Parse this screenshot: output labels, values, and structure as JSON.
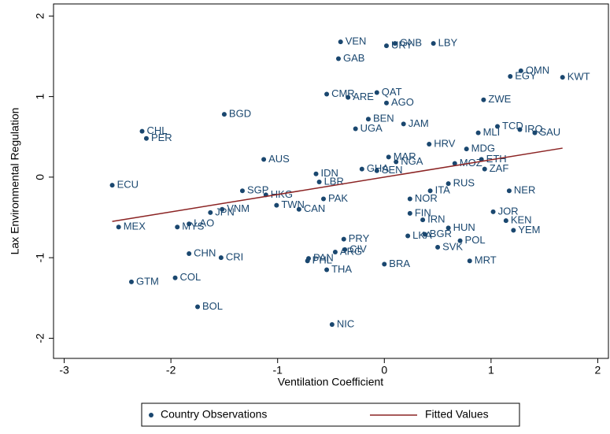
{
  "chart_data": {
    "type": "scatter",
    "x_label": "Ventilation Coefficient",
    "y_label": "Lax Environmental Regulation",
    "xlim": [
      -3.1,
      2.1
    ],
    "xticks": [
      -3,
      -2,
      -1,
      0,
      1,
      2
    ],
    "ylim": [
      -2.25,
      2.15
    ],
    "yticks": [
      -2,
      -1,
      0,
      1,
      2
    ],
    "series": [
      {
        "name": "Country Observations",
        "color": "#1a476f",
        "labels": [
          "VEN",
          "GAB",
          "CMR",
          "ARE",
          "QAT",
          "AGO",
          "BGD",
          "CHL",
          "PER",
          "BEN",
          "UGA",
          "GNB",
          "URY",
          "LBY",
          "OMN",
          "EGY",
          "KWT",
          "ZWE",
          "IRQ",
          "SAU",
          "TCD",
          "MLI",
          "JAM",
          "HRV",
          "MDG",
          "ETH",
          "ZAF",
          "MOZ",
          "MAR",
          "NGA",
          "AUS",
          "IDN",
          "LBR",
          "GHA",
          "SEN",
          "ECU",
          "SGP",
          "HKG",
          "PAK",
          "VNM",
          "TWN",
          "CAN",
          "JPN",
          "LAO",
          "MYS",
          "MEX",
          "RUS",
          "NER",
          "ITA",
          "NOR",
          "FIN",
          "IRN",
          "JOR",
          "KEN",
          "YEM",
          "LKA",
          "BGR",
          "POL",
          "HUN",
          "SVK",
          "MRT",
          "BRA",
          "PRY",
          "CIV",
          "ARG",
          "PAN",
          "PHL",
          "THA",
          "CHN",
          "CRI",
          "COL",
          "GTM",
          "BOL",
          "NIC"
        ],
        "x": [
          -0.41,
          -0.43,
          -0.54,
          -0.34,
          -0.07,
          0.02,
          -1.5,
          -2.27,
          -2.23,
          -0.15,
          -0.27,
          0.1,
          0.02,
          0.46,
          1.28,
          1.18,
          1.67,
          0.93,
          1.27,
          1.41,
          1.06,
          0.88,
          0.18,
          0.42,
          0.77,
          0.91,
          0.94,
          0.66,
          0.04,
          0.11,
          -1.13,
          -0.64,
          -0.61,
          -0.21,
          -0.07,
          -2.55,
          -1.33,
          -1.11,
          -0.57,
          -1.52,
          -1.01,
          -0.8,
          -1.63,
          -1.83,
          -1.94,
          -2.49,
          0.6,
          1.17,
          0.43,
          0.24,
          0.24,
          0.36,
          1.02,
          1.14,
          1.21,
          0.22,
          0.38,
          0.71,
          0.6,
          0.5,
          0.8,
          0.0,
          -0.38,
          -0.37,
          -0.46,
          -0.71,
          -0.72,
          -0.54,
          -1.83,
          -1.53,
          -1.96,
          -2.37,
          -1.75,
          -0.49
        ],
        "values": [
          1.68,
          1.47,
          1.03,
          0.99,
          1.05,
          0.92,
          0.78,
          0.57,
          0.48,
          0.72,
          0.6,
          1.66,
          1.63,
          1.66,
          1.32,
          1.25,
          1.24,
          0.96,
          0.59,
          0.55,
          0.63,
          0.55,
          0.66,
          0.41,
          0.35,
          0.22,
          0.1,
          0.17,
          0.25,
          0.19,
          0.22,
          0.04,
          -0.06,
          0.1,
          0.08,
          -0.1,
          -0.17,
          -0.22,
          -0.27,
          -0.4,
          -0.35,
          -0.4,
          -0.44,
          -0.58,
          -0.62,
          -0.62,
          -0.08,
          -0.17,
          -0.17,
          -0.27,
          -0.45,
          -0.53,
          -0.43,
          -0.54,
          -0.66,
          -0.73,
          -0.71,
          -0.79,
          -0.63,
          -0.87,
          -1.04,
          -1.08,
          -0.77,
          -0.9,
          -0.93,
          -1.01,
          -1.04,
          -1.15,
          -0.95,
          -1.0,
          -1.25,
          -1.3,
          -1.61,
          -1.83
        ]
      },
      {
        "name": "Fitted Values",
        "color": "#8b2323",
        "type": "line",
        "x": [
          -2.55,
          1.67
        ],
        "values": [
          -0.55,
          0.36
        ]
      }
    ]
  }
}
